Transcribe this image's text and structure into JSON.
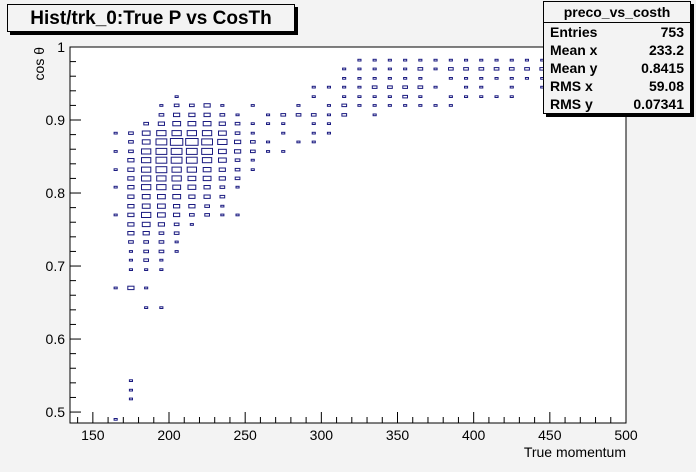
{
  "chart_data": {
    "type": "scatter",
    "title": "Hist/trk_0:True P vs CosTh",
    "xlabel": "True momentum",
    "ylabel": "cos θ",
    "xlim": [
      135,
      500
    ],
    "ylim": [
      0.485,
      1.0
    ],
    "x_ticks": [
      150,
      200,
      250,
      300,
      350,
      400,
      450,
      500
    ],
    "y_ticks": [
      0.5,
      0.6,
      0.7,
      0.8,
      0.9,
      1
    ],
    "box_color": "#1a1a80",
    "grid": false,
    "stats": {
      "name": "preco_vs_costh",
      "rows": [
        {
          "label": "Entries",
          "value": "753"
        },
        {
          "label": "Mean x",
          "value": "233.2"
        },
        {
          "label": "Mean y",
          "value": "0.8415"
        },
        {
          "label": "RMS x",
          "value": "59.08"
        },
        {
          "label": "RMS y",
          "value": "0.07341"
        }
      ]
    },
    "bins": [
      {
        "x": 165,
        "y": 0.49,
        "w": 2
      },
      {
        "x": 175,
        "y": 0.53,
        "w": 2
      },
      {
        "x": 175,
        "y": 0.543,
        "w": 2
      },
      {
        "x": 175,
        "y": 0.518,
        "w": 2
      },
      {
        "x": 185,
        "y": 0.643,
        "w": 2
      },
      {
        "x": 195,
        "y": 0.643,
        "w": 2
      },
      {
        "x": 165,
        "y": 0.67,
        "w": 2
      },
      {
        "x": 175,
        "y": 0.67,
        "w": 4
      },
      {
        "x": 185,
        "y": 0.67,
        "w": 2
      },
      {
        "x": 175,
        "y": 0.695,
        "w": 2
      },
      {
        "x": 185,
        "y": 0.695,
        "w": 2
      },
      {
        "x": 195,
        "y": 0.695,
        "w": 2
      },
      {
        "x": 175,
        "y": 0.708,
        "w": 2
      },
      {
        "x": 185,
        "y": 0.708,
        "w": 3
      },
      {
        "x": 195,
        "y": 0.708,
        "w": 2
      },
      {
        "x": 175,
        "y": 0.72,
        "w": 2
      },
      {
        "x": 185,
        "y": 0.72,
        "w": 3
      },
      {
        "x": 195,
        "y": 0.72,
        "w": 3
      },
      {
        "x": 205,
        "y": 0.72,
        "w": 2
      },
      {
        "x": 175,
        "y": 0.733,
        "w": 3
      },
      {
        "x": 185,
        "y": 0.733,
        "w": 3
      },
      {
        "x": 195,
        "y": 0.733,
        "w": 3
      },
      {
        "x": 205,
        "y": 0.733,
        "w": 2
      },
      {
        "x": 175,
        "y": 0.745,
        "w": 4
      },
      {
        "x": 185,
        "y": 0.745,
        "w": 4
      },
      {
        "x": 195,
        "y": 0.745,
        "w": 3
      },
      {
        "x": 205,
        "y": 0.745,
        "w": 3
      },
      {
        "x": 175,
        "y": 0.757,
        "w": 4
      },
      {
        "x": 185,
        "y": 0.757,
        "w": 5
      },
      {
        "x": 195,
        "y": 0.757,
        "w": 4
      },
      {
        "x": 205,
        "y": 0.757,
        "w": 3
      },
      {
        "x": 215,
        "y": 0.757,
        "w": 2
      },
      {
        "x": 165,
        "y": 0.77,
        "w": 2
      },
      {
        "x": 175,
        "y": 0.77,
        "w": 4
      },
      {
        "x": 185,
        "y": 0.77,
        "w": 6
      },
      {
        "x": 195,
        "y": 0.77,
        "w": 5
      },
      {
        "x": 205,
        "y": 0.77,
        "w": 4
      },
      {
        "x": 215,
        "y": 0.77,
        "w": 3
      },
      {
        "x": 225,
        "y": 0.77,
        "w": 3
      },
      {
        "x": 235,
        "y": 0.77,
        "w": 2
      },
      {
        "x": 245,
        "y": 0.77,
        "w": 2
      },
      {
        "x": 175,
        "y": 0.782,
        "w": 4
      },
      {
        "x": 185,
        "y": 0.782,
        "w": 5
      },
      {
        "x": 195,
        "y": 0.782,
        "w": 5
      },
      {
        "x": 205,
        "y": 0.782,
        "w": 4
      },
      {
        "x": 215,
        "y": 0.782,
        "w": 4
      },
      {
        "x": 225,
        "y": 0.782,
        "w": 3
      },
      {
        "x": 235,
        "y": 0.782,
        "w": 2
      },
      {
        "x": 175,
        "y": 0.795,
        "w": 4
      },
      {
        "x": 185,
        "y": 0.795,
        "w": 5
      },
      {
        "x": 195,
        "y": 0.795,
        "w": 5
      },
      {
        "x": 205,
        "y": 0.795,
        "w": 5
      },
      {
        "x": 215,
        "y": 0.795,
        "w": 4
      },
      {
        "x": 225,
        "y": 0.795,
        "w": 4
      },
      {
        "x": 235,
        "y": 0.795,
        "w": 3
      },
      {
        "x": 165,
        "y": 0.808,
        "w": 2
      },
      {
        "x": 175,
        "y": 0.808,
        "w": 4
      },
      {
        "x": 185,
        "y": 0.808,
        "w": 6
      },
      {
        "x": 195,
        "y": 0.808,
        "w": 6
      },
      {
        "x": 205,
        "y": 0.808,
        "w": 5
      },
      {
        "x": 215,
        "y": 0.808,
        "w": 5
      },
      {
        "x": 225,
        "y": 0.808,
        "w": 4
      },
      {
        "x": 235,
        "y": 0.808,
        "w": 3
      },
      {
        "x": 245,
        "y": 0.808,
        "w": 2
      },
      {
        "x": 175,
        "y": 0.82,
        "w": 4
      },
      {
        "x": 185,
        "y": 0.82,
        "w": 6
      },
      {
        "x": 195,
        "y": 0.82,
        "w": 6
      },
      {
        "x": 205,
        "y": 0.82,
        "w": 6
      },
      {
        "x": 215,
        "y": 0.82,
        "w": 5
      },
      {
        "x": 225,
        "y": 0.82,
        "w": 5
      },
      {
        "x": 235,
        "y": 0.82,
        "w": 4
      },
      {
        "x": 245,
        "y": 0.82,
        "w": 3
      },
      {
        "x": 165,
        "y": 0.832,
        "w": 2
      },
      {
        "x": 175,
        "y": 0.832,
        "w": 4
      },
      {
        "x": 185,
        "y": 0.832,
        "w": 6
      },
      {
        "x": 195,
        "y": 0.832,
        "w": 7
      },
      {
        "x": 205,
        "y": 0.832,
        "w": 6
      },
      {
        "x": 215,
        "y": 0.832,
        "w": 6
      },
      {
        "x": 225,
        "y": 0.832,
        "w": 5
      },
      {
        "x": 235,
        "y": 0.832,
        "w": 4
      },
      {
        "x": 245,
        "y": 0.832,
        "w": 3
      },
      {
        "x": 255,
        "y": 0.832,
        "w": 2
      },
      {
        "x": 175,
        "y": 0.845,
        "w": 4
      },
      {
        "x": 185,
        "y": 0.845,
        "w": 6
      },
      {
        "x": 195,
        "y": 0.845,
        "w": 7
      },
      {
        "x": 205,
        "y": 0.845,
        "w": 7
      },
      {
        "x": 215,
        "y": 0.845,
        "w": 7
      },
      {
        "x": 225,
        "y": 0.845,
        "w": 6
      },
      {
        "x": 235,
        "y": 0.845,
        "w": 5
      },
      {
        "x": 245,
        "y": 0.845,
        "w": 3
      },
      {
        "x": 255,
        "y": 0.845,
        "w": 2
      },
      {
        "x": 165,
        "y": 0.857,
        "w": 2
      },
      {
        "x": 175,
        "y": 0.857,
        "w": 3
      },
      {
        "x": 185,
        "y": 0.857,
        "w": 6
      },
      {
        "x": 195,
        "y": 0.857,
        "w": 7
      },
      {
        "x": 205,
        "y": 0.857,
        "w": 7
      },
      {
        "x": 215,
        "y": 0.857,
        "w": 7
      },
      {
        "x": 225,
        "y": 0.857,
        "w": 7
      },
      {
        "x": 235,
        "y": 0.857,
        "w": 5
      },
      {
        "x": 245,
        "y": 0.857,
        "w": 4
      },
      {
        "x": 255,
        "y": 0.857,
        "w": 3
      },
      {
        "x": 265,
        "y": 0.857,
        "w": 2
      },
      {
        "x": 275,
        "y": 0.857,
        "w": 2
      },
      {
        "x": 175,
        "y": 0.87,
        "w": 3
      },
      {
        "x": 185,
        "y": 0.87,
        "w": 5
      },
      {
        "x": 195,
        "y": 0.87,
        "w": 7
      },
      {
        "x": 205,
        "y": 0.87,
        "w": 8
      },
      {
        "x": 215,
        "y": 0.87,
        "w": 8
      },
      {
        "x": 225,
        "y": 0.87,
        "w": 7
      },
      {
        "x": 235,
        "y": 0.87,
        "w": 6
      },
      {
        "x": 245,
        "y": 0.87,
        "w": 4
      },
      {
        "x": 255,
        "y": 0.87,
        "w": 3
      },
      {
        "x": 265,
        "y": 0.87,
        "w": 2
      },
      {
        "x": 285,
        "y": 0.87,
        "w": 2
      },
      {
        "x": 295,
        "y": 0.87,
        "w": 2
      },
      {
        "x": 165,
        "y": 0.882,
        "w": 2
      },
      {
        "x": 175,
        "y": 0.882,
        "w": 3
      },
      {
        "x": 185,
        "y": 0.882,
        "w": 5
      },
      {
        "x": 195,
        "y": 0.882,
        "w": 6
      },
      {
        "x": 205,
        "y": 0.882,
        "w": 6
      },
      {
        "x": 215,
        "y": 0.882,
        "w": 6
      },
      {
        "x": 225,
        "y": 0.882,
        "w": 6
      },
      {
        "x": 235,
        "y": 0.882,
        "w": 5
      },
      {
        "x": 245,
        "y": 0.882,
        "w": 3
      },
      {
        "x": 255,
        "y": 0.882,
        "w": 2
      },
      {
        "x": 275,
        "y": 0.882,
        "w": 2
      },
      {
        "x": 295,
        "y": 0.882,
        "w": 2
      },
      {
        "x": 305,
        "y": 0.882,
        "w": 2
      },
      {
        "x": 185,
        "y": 0.895,
        "w": 3
      },
      {
        "x": 195,
        "y": 0.895,
        "w": 4
      },
      {
        "x": 205,
        "y": 0.895,
        "w": 5
      },
      {
        "x": 215,
        "y": 0.895,
        "w": 5
      },
      {
        "x": 225,
        "y": 0.895,
        "w": 5
      },
      {
        "x": 235,
        "y": 0.895,
        "w": 4
      },
      {
        "x": 245,
        "y": 0.895,
        "w": 3
      },
      {
        "x": 255,
        "y": 0.895,
        "w": 2
      },
      {
        "x": 265,
        "y": 0.895,
        "w": 2
      },
      {
        "x": 275,
        "y": 0.895,
        "w": 2
      },
      {
        "x": 295,
        "y": 0.895,
        "w": 2
      },
      {
        "x": 305,
        "y": 0.895,
        "w": 2
      },
      {
        "x": 195,
        "y": 0.907,
        "w": 3
      },
      {
        "x": 205,
        "y": 0.907,
        "w": 4
      },
      {
        "x": 215,
        "y": 0.907,
        "w": 4
      },
      {
        "x": 225,
        "y": 0.907,
        "w": 4
      },
      {
        "x": 235,
        "y": 0.907,
        "w": 3
      },
      {
        "x": 245,
        "y": 0.907,
        "w": 2
      },
      {
        "x": 265,
        "y": 0.907,
        "w": 2
      },
      {
        "x": 275,
        "y": 0.907,
        "w": 3
      },
      {
        "x": 285,
        "y": 0.907,
        "w": 3
      },
      {
        "x": 295,
        "y": 0.907,
        "w": 3
      },
      {
        "x": 305,
        "y": 0.907,
        "w": 2
      },
      {
        "x": 315,
        "y": 0.907,
        "w": 3
      },
      {
        "x": 335,
        "y": 0.907,
        "w": 2
      },
      {
        "x": 195,
        "y": 0.92,
        "w": 2
      },
      {
        "x": 205,
        "y": 0.92,
        "w": 3
      },
      {
        "x": 215,
        "y": 0.92,
        "w": 3
      },
      {
        "x": 225,
        "y": 0.92,
        "w": 4
      },
      {
        "x": 235,
        "y": 0.92,
        "w": 2
      },
      {
        "x": 255,
        "y": 0.92,
        "w": 2
      },
      {
        "x": 285,
        "y": 0.92,
        "w": 2
      },
      {
        "x": 305,
        "y": 0.92,
        "w": 2
      },
      {
        "x": 315,
        "y": 0.92,
        "w": 3
      },
      {
        "x": 325,
        "y": 0.92,
        "w": 2
      },
      {
        "x": 335,
        "y": 0.92,
        "w": 2
      },
      {
        "x": 345,
        "y": 0.92,
        "w": 2
      },
      {
        "x": 355,
        "y": 0.92,
        "w": 2
      },
      {
        "x": 365,
        "y": 0.92,
        "w": 2
      },
      {
        "x": 375,
        "y": 0.92,
        "w": 2
      },
      {
        "x": 385,
        "y": 0.92,
        "w": 2
      },
      {
        "x": 205,
        "y": 0.932,
        "w": 2
      },
      {
        "x": 295,
        "y": 0.932,
        "w": 2
      },
      {
        "x": 315,
        "y": 0.932,
        "w": 2
      },
      {
        "x": 325,
        "y": 0.932,
        "w": 2
      },
      {
        "x": 335,
        "y": 0.932,
        "w": 2
      },
      {
        "x": 345,
        "y": 0.932,
        "w": 2
      },
      {
        "x": 355,
        "y": 0.932,
        "w": 3
      },
      {
        "x": 365,
        "y": 0.932,
        "w": 2
      },
      {
        "x": 385,
        "y": 0.932,
        "w": 2
      },
      {
        "x": 395,
        "y": 0.932,
        "w": 2
      },
      {
        "x": 405,
        "y": 0.932,
        "w": 2
      },
      {
        "x": 415,
        "y": 0.932,
        "w": 2
      },
      {
        "x": 425,
        "y": 0.932,
        "w": 2
      },
      {
        "x": 295,
        "y": 0.945,
        "w": 2
      },
      {
        "x": 305,
        "y": 0.945,
        "w": 2
      },
      {
        "x": 315,
        "y": 0.945,
        "w": 2
      },
      {
        "x": 325,
        "y": 0.945,
        "w": 2
      },
      {
        "x": 335,
        "y": 0.945,
        "w": 3
      },
      {
        "x": 345,
        "y": 0.945,
        "w": 3
      },
      {
        "x": 355,
        "y": 0.945,
        "w": 3
      },
      {
        "x": 365,
        "y": 0.945,
        "w": 3
      },
      {
        "x": 375,
        "y": 0.945,
        "w": 2
      },
      {
        "x": 395,
        "y": 0.945,
        "w": 2
      },
      {
        "x": 405,
        "y": 0.945,
        "w": 2
      },
      {
        "x": 425,
        "y": 0.945,
        "w": 2
      },
      {
        "x": 445,
        "y": 0.945,
        "w": 2
      },
      {
        "x": 315,
        "y": 0.957,
        "w": 2
      },
      {
        "x": 325,
        "y": 0.957,
        "w": 2
      },
      {
        "x": 335,
        "y": 0.957,
        "w": 2
      },
      {
        "x": 345,
        "y": 0.957,
        "w": 2
      },
      {
        "x": 355,
        "y": 0.957,
        "w": 2
      },
      {
        "x": 365,
        "y": 0.957,
        "w": 2
      },
      {
        "x": 385,
        "y": 0.957,
        "w": 2
      },
      {
        "x": 395,
        "y": 0.957,
        "w": 2
      },
      {
        "x": 405,
        "y": 0.957,
        "w": 2
      },
      {
        "x": 415,
        "y": 0.957,
        "w": 2
      },
      {
        "x": 425,
        "y": 0.957,
        "w": 2
      },
      {
        "x": 435,
        "y": 0.957,
        "w": 2
      },
      {
        "x": 445,
        "y": 0.957,
        "w": 2
      },
      {
        "x": 315,
        "y": 0.97,
        "w": 2
      },
      {
        "x": 325,
        "y": 0.97,
        "w": 2
      },
      {
        "x": 335,
        "y": 0.97,
        "w": 2
      },
      {
        "x": 345,
        "y": 0.97,
        "w": 2
      },
      {
        "x": 355,
        "y": 0.97,
        "w": 2
      },
      {
        "x": 365,
        "y": 0.97,
        "w": 3
      },
      {
        "x": 375,
        "y": 0.97,
        "w": 2
      },
      {
        "x": 385,
        "y": 0.97,
        "w": 3
      },
      {
        "x": 395,
        "y": 0.97,
        "w": 3
      },
      {
        "x": 405,
        "y": 0.97,
        "w": 3
      },
      {
        "x": 415,
        "y": 0.97,
        "w": 3
      },
      {
        "x": 425,
        "y": 0.97,
        "w": 3
      },
      {
        "x": 435,
        "y": 0.97,
        "w": 3
      },
      {
        "x": 445,
        "y": 0.97,
        "w": 3
      },
      {
        "x": 455,
        "y": 0.97,
        "w": 3
      },
      {
        "x": 465,
        "y": 0.97,
        "w": 2
      },
      {
        "x": 475,
        "y": 0.97,
        "w": 2
      },
      {
        "x": 485,
        "y": 0.97,
        "w": 3
      },
      {
        "x": 495,
        "y": 0.97,
        "w": 3
      },
      {
        "x": 325,
        "y": 0.982,
        "w": 2
      },
      {
        "x": 335,
        "y": 0.982,
        "w": 2
      },
      {
        "x": 345,
        "y": 0.982,
        "w": 2
      },
      {
        "x": 355,
        "y": 0.982,
        "w": 2
      },
      {
        "x": 365,
        "y": 0.982,
        "w": 2
      },
      {
        "x": 375,
        "y": 0.982,
        "w": 2
      },
      {
        "x": 385,
        "y": 0.982,
        "w": 2
      },
      {
        "x": 395,
        "y": 0.982,
        "w": 2
      },
      {
        "x": 405,
        "y": 0.982,
        "w": 2
      },
      {
        "x": 415,
        "y": 0.982,
        "w": 2
      },
      {
        "x": 425,
        "y": 0.982,
        "w": 2
      },
      {
        "x": 435,
        "y": 0.982,
        "w": 2
      },
      {
        "x": 445,
        "y": 0.982,
        "w": 2
      },
      {
        "x": 455,
        "y": 0.982,
        "w": 2
      },
      {
        "x": 465,
        "y": 0.982,
        "w": 2
      },
      {
        "x": 475,
        "y": 0.982,
        "w": 2
      },
      {
        "x": 485,
        "y": 0.982,
        "w": 2
      },
      {
        "x": 495,
        "y": 0.982,
        "w": 2
      }
    ]
  }
}
